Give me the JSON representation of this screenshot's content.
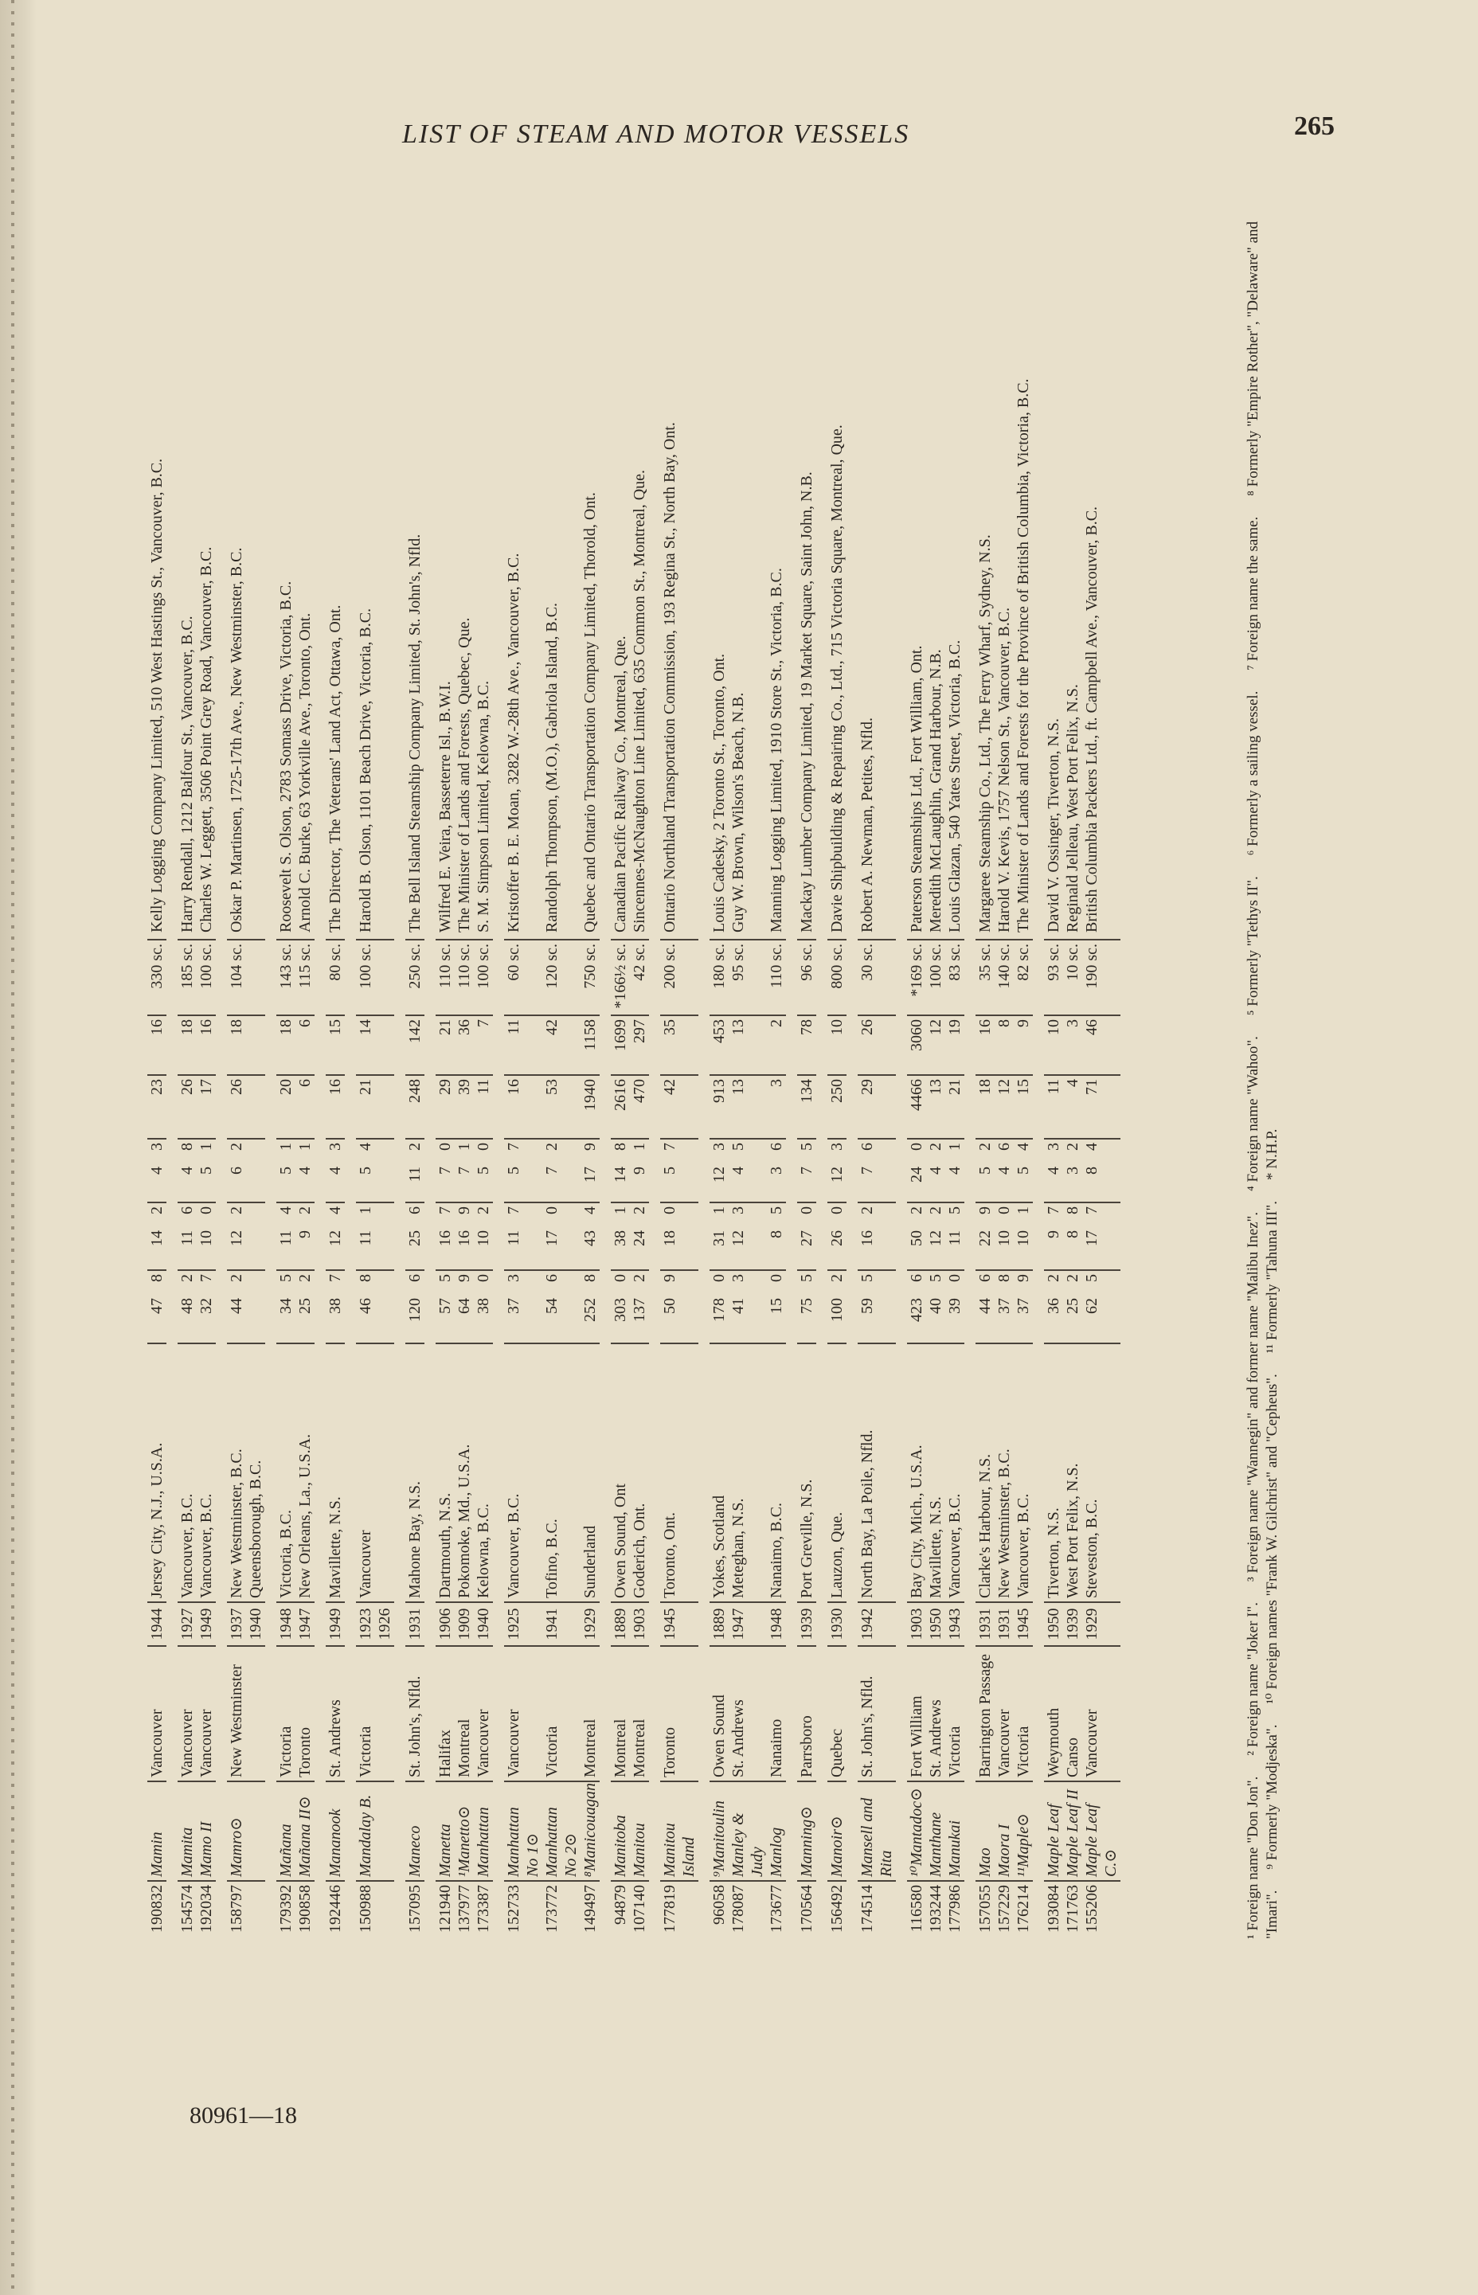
{
  "header": {
    "title": "LIST OF STEAM AND MOTOR VESSELS",
    "page_number": "265"
  },
  "footer": {
    "code": "80961—18"
  },
  "groups": [
    [
      0
    ],
    [
      1,
      2
    ],
    [
      3
    ],
    [
      4,
      5
    ],
    [
      6
    ],
    [
      7
    ],
    [
      8
    ],
    [
      9,
      10,
      11
    ],
    [
      12,
      13,
      14
    ],
    [
      15,
      16
    ],
    [
      17
    ],
    [
      18,
      19,
      20
    ],
    [
      21
    ],
    [
      22
    ],
    [
      23
    ],
    [
      24,
      25,
      26
    ],
    [
      27,
      28,
      29
    ],
    [
      30,
      31,
      32
    ]
  ],
  "rows": [
    {
      "off": "190832",
      "name": "Mamin",
      "port": "Vancouver",
      "year": "1944",
      "where": "Jersey City, N.J., U.S.A.",
      "l": "47",
      "li": "8",
      "b": "14",
      "bi": "2",
      "d": "4",
      "di": "3",
      "gross": "23",
      "reg": "16",
      "hp": "330 sc.",
      "owner": "Kelly Logging Company Limited, 510 West Hastings St., Vancouver, B.C."
    },
    {
      "off": "154574",
      "name": "Mamita",
      "port": "Vancouver",
      "year": "1927",
      "where": "Vancouver, B.C.",
      "l": "48",
      "li": "2",
      "b": "11",
      "bi": "6",
      "d": "4",
      "di": "8",
      "gross": "26",
      "reg": "18",
      "hp": "185 sc.",
      "owner": "Harry Rendall, 1212 Balfour St., Vancouver, B.C."
    },
    {
      "off": "192034",
      "name": "Mamo II",
      "port": "Vancouver",
      "year": "1949",
      "where": "Vancouver, B.C.",
      "l": "32",
      "li": "7",
      "b": "10",
      "bi": "0",
      "d": "5",
      "di": "1",
      "gross": "17",
      "reg": "16",
      "hp": "100 sc.",
      "owner": "Charles W. Leggett, 3506 Point Grey Road, Vancouver, B.C."
    },
    {
      "off": "158797",
      "name": "Mamro⊙",
      "port": "New Westminster",
      "year": "1937\n1940",
      "where": "New Westminster, B.C.\nQueensborough, B.C.",
      "l": "44",
      "li": "2",
      "b": "12",
      "bi": "2",
      "d": "6",
      "di": "2",
      "gross": "26",
      "reg": "18",
      "hp": "104 sc.",
      "owner": "Oskar P. Martinsen, 1725-17th Ave., New Westminster, B.C."
    },
    {
      "off": "179392",
      "name": "Mañana",
      "port": "Victoria",
      "year": "1948",
      "where": "Victoria, B.C.",
      "l": "34",
      "li": "5",
      "b": "11",
      "bi": "4",
      "d": "5",
      "di": "1",
      "gross": "20",
      "reg": "18",
      "hp": "143 sc.",
      "owner": "Roosevelt S. Olson, 2783 Somass Drive, Victoria, B.C."
    },
    {
      "off": "190858",
      "name": "Mañana II⊙",
      "port": "Toronto",
      "year": "1947",
      "where": "New Orleans, La., U.S.A.",
      "l": "25",
      "li": "2",
      "b": "9",
      "bi": "2",
      "d": "4",
      "di": "1",
      "gross": "6",
      "reg": "6",
      "hp": "115 sc.",
      "owner": "Arnold C. Burke, 63 Yorkville Ave., Toronto, Ont."
    },
    {
      "off": "192446",
      "name": "Mananook",
      "port": "St. Andrews",
      "year": "1949",
      "where": "Mavillette, N.S.",
      "l": "38",
      "li": "7",
      "b": "12",
      "bi": "4",
      "d": "4",
      "di": "3",
      "gross": "16",
      "reg": "15",
      "hp": "80 sc.",
      "owner": "The Director, The Veterans' Land Act, Ottawa, Ont."
    },
    {
      "off": "150988",
      "name": "Mandalay B.",
      "port": "Victoria",
      "year": "1923\n1926",
      "where": "Vancouver",
      "l": "46",
      "li": "8",
      "b": "11",
      "bi": "1",
      "d": "5",
      "di": "4",
      "gross": "21",
      "reg": "14",
      "hp": "100 sc.",
      "owner": "Harold B. Olson, 1101 Beach Drive, Victoria, B.C."
    },
    {
      "off": "157095",
      "name": "Maneco",
      "port": "St. John's, Nfld.",
      "year": "1931",
      "where": "Mahone Bay, N.S.",
      "l": "120",
      "li": "6",
      "b": "25",
      "bi": "6",
      "d": "11",
      "di": "2",
      "gross": "248",
      "reg": "142",
      "hp": "250 sc.",
      "owner": "The Bell Island Steamship Company Limited, St. John's, Nfld."
    },
    {
      "off": "121940",
      "name": "Manetta",
      "port": "Halifax",
      "year": "1906",
      "where": "Dartmouth, N.S.",
      "l": "57",
      "li": "5",
      "b": "16",
      "bi": "7",
      "d": "7",
      "di": "0",
      "gross": "29",
      "reg": "21",
      "hp": "110 sc.",
      "owner": "Wilfred E. Veira, Basseterre Isl., B.W.I."
    },
    {
      "off": "137977",
      "name": "¹Manetto⊙",
      "port": "Montreal",
      "year": "1909",
      "where": "Pokomoke, Md., U.S.A.",
      "l": "64",
      "li": "9",
      "b": "16",
      "bi": "9",
      "d": "7",
      "di": "1",
      "gross": "39",
      "reg": "36",
      "hp": "110 sc.",
      "owner": "The Minister of Lands and Forests, Quebec, Que."
    },
    {
      "off": "173387",
      "name": "Manhattan",
      "port": "Vancouver",
      "year": "1940",
      "where": "Kelowna, B.C.",
      "l": "38",
      "li": "0",
      "b": "10",
      "bi": "2",
      "d": "5",
      "di": "0",
      "gross": "11",
      "reg": "7",
      "hp": "100 sc.",
      "owner": "S. M. Simpson Limited, Kelowna, B.C."
    },
    {
      "off": "152733",
      "name": "Manhattan No 1⊙",
      "port": "Vancouver",
      "year": "1925",
      "where": "Vancouver, B.C.",
      "l": "37",
      "li": "3",
      "b": "11",
      "bi": "7",
      "d": "5",
      "di": "7",
      "gross": "16",
      "reg": "11",
      "hp": "60 sc.",
      "owner": "Kristoffer B. E. Moan, 3282 W.-28th Ave., Vancouver, B.C."
    },
    {
      "off": "173772",
      "name": "Manhattan No 2⊙",
      "port": "Victoria",
      "year": "1941",
      "where": "Tofino, B.C.",
      "l": "54",
      "li": "6",
      "b": "17",
      "bi": "0",
      "d": "7",
      "di": "2",
      "gross": "53",
      "reg": "42",
      "hp": "120 sc.",
      "owner": "Randolph Thompson, (M.O.), Gabriola Island, B.C."
    },
    {
      "off": "149497",
      "name": "⁸Manicouagan⊙",
      "port": "Montreal",
      "year": "1929",
      "where": "Sunderland",
      "l": "252",
      "li": "8",
      "b": "43",
      "bi": "4",
      "d": "17",
      "di": "9",
      "gross": "1940",
      "reg": "1158",
      "hp": "750 sc.",
      "owner": "Quebec and Ontario Transportation Company Limited, Thorold, Ont."
    },
    {
      "off": "94879",
      "name": "Manitoba",
      "port": "Montreal",
      "year": "1889",
      "where": "Owen Sound, Ont",
      "l": "303",
      "li": "0",
      "b": "38",
      "bi": "1",
      "d": "14",
      "di": "8",
      "gross": "2616",
      "reg": "1699",
      "hp": "*166½ sc.",
      "owner": "Canadian Pacific Railway Co., Montreal, Que."
    },
    {
      "off": "107140",
      "name": "Manitou",
      "port": "Montreal",
      "year": "1903",
      "where": "Goderich, Ont.",
      "l": "137",
      "li": "2",
      "b": "24",
      "bi": "2",
      "d": "9",
      "di": "1",
      "gross": "470",
      "reg": "297",
      "hp": "42 sc.",
      "owner": "Sincennes-McNaughton Line Limited, 635 Common St., Montreal, Que."
    },
    {
      "off": "177819",
      "name": "Manitou Island",
      "port": "Toronto",
      "year": "1945",
      "where": "Toronto, Ont.",
      "l": "50",
      "li": "9",
      "b": "18",
      "bi": "0",
      "d": "5",
      "di": "7",
      "gross": "42",
      "reg": "35",
      "hp": "200 sc.",
      "owner": "Ontario Northland Transportation Commission, 193 Regina St., North Bay, Ont."
    },
    {
      "off": "96058",
      "name": "⁹Manitoulin",
      "port": "Owen Sound",
      "year": "1889",
      "where": "Yokes, Scotland",
      "l": "178",
      "li": "0",
      "b": "31",
      "bi": "1",
      "d": "12",
      "di": "3",
      "gross": "913",
      "reg": "453",
      "hp": "180 sc.",
      "owner": "Louis Cadesky, 2 Toronto St., Toronto, Ont."
    },
    {
      "off": "178087",
      "name": "Manley & Judy",
      "port": "St. Andrews",
      "year": "1947",
      "where": "Meteghan, N.S.",
      "l": "41",
      "li": "3",
      "b": "12",
      "bi": "3",
      "d": "4",
      "di": "5",
      "gross": "13",
      "reg": "13",
      "hp": "95 sc.",
      "owner": "Guy W. Brown, Wilson's Beach, N.B."
    },
    {
      "off": "173677",
      "name": "Manlog",
      "port": "Nanaimo",
      "year": "1948",
      "where": "Nanaimo, B.C.",
      "l": "15",
      "li": "0",
      "b": "8",
      "bi": "5",
      "d": "3",
      "di": "6",
      "gross": "3",
      "reg": "2",
      "hp": "110 sc.",
      "owner": "Manning Logging Limited, 1910 Store St., Victoria, B.C."
    },
    {
      "off": "170564",
      "name": "Manning⊙",
      "port": "Parrsboro",
      "year": "1939",
      "where": "Port Greville, N.S.",
      "l": "75",
      "li": "5",
      "b": "27",
      "bi": "0",
      "d": "7",
      "di": "5",
      "gross": "134",
      "reg": "78",
      "hp": "96 sc.",
      "owner": "Mackay Lumber Company Limited, 19 Market Square, Saint John, N.B."
    },
    {
      "off": "156492",
      "name": "Manoir⊙",
      "port": "Quebec",
      "year": "1930",
      "where": "Lauzon, Que.",
      "l": "100",
      "li": "2",
      "b": "26",
      "bi": "0",
      "d": "12",
      "di": "3",
      "gross": "250",
      "reg": "10",
      "hp": "800 sc.",
      "owner": "Davie Shipbuilding & Repairing Co., Ltd., 715 Victoria Square, Montreal, Que."
    },
    {
      "off": "174514",
      "name": "Mansell and Rita",
      "port": "St. John's, Nfld.",
      "year": "1942",
      "where": "North Bay, La Poile, Nfld.",
      "l": "59",
      "li": "5",
      "b": "16",
      "bi": "2",
      "d": "7",
      "di": "6",
      "gross": "29",
      "reg": "26",
      "hp": "30 sc.",
      "owner": "Robert A. Newman, Petites, Nfld."
    },
    {
      "off": "116580",
      "name": "¹⁰Mantadoc⊙",
      "port": "Fort William",
      "year": "1903",
      "where": "Bay City, Mich., U.S.A.",
      "l": "423",
      "li": "6",
      "b": "50",
      "bi": "2",
      "d": "24",
      "di": "0",
      "gross": "4466",
      "reg": "3060",
      "hp": "*169 sc.",
      "owner": "Paterson Steamships Ltd., Fort William, Ont."
    },
    {
      "off": "193244",
      "name": "Manthane",
      "port": "St. Andrews",
      "year": "1950",
      "where": "Mavillette, N.S.",
      "l": "40",
      "li": "5",
      "b": "12",
      "bi": "2",
      "d": "4",
      "di": "2",
      "gross": "13",
      "reg": "12",
      "hp": "100 sc.",
      "owner": "Meredith McLaughlin, Grand Harbour, N.B."
    },
    {
      "off": "177986",
      "name": "Manukai",
      "port": "Victoria",
      "year": "1943",
      "where": "Vancouver, B.C.",
      "l": "39",
      "li": "0",
      "b": "11",
      "bi": "5",
      "d": "4",
      "di": "1",
      "gross": "21",
      "reg": "19",
      "hp": "83 sc.",
      "owner": "Louis Glazan, 540 Yates Street, Victoria, B.C."
    },
    {
      "off": "157055",
      "name": "Mao",
      "port": "Barrington Passage",
      "year": "1931",
      "where": "Clarke's Harbour, N.S.",
      "l": "44",
      "li": "6",
      "b": "22",
      "bi": "9",
      "d": "5",
      "di": "2",
      "gross": "18",
      "reg": "16",
      "hp": "35 sc.",
      "owner": "Margaree Steamship Co., Ltd., The Ferry Wharf, Sydney, N.S."
    },
    {
      "off": "157229",
      "name": "Maora I",
      "port": "Vancouver",
      "year": "1931",
      "where": "New Westminster, B.C.",
      "l": "37",
      "li": "8",
      "b": "10",
      "bi": "0",
      "d": "4",
      "di": "6",
      "gross": "12",
      "reg": "8",
      "hp": "140 sc.",
      "owner": "Harold V. Kevis, 1757 Nelson St., Vancouver, B.C."
    },
    {
      "off": "176214",
      "name": "¹¹Maple⊙",
      "port": "Victoria",
      "year": "1945",
      "where": "Vancouver, B.C.",
      "l": "37",
      "li": "9",
      "b": "10",
      "bi": "1",
      "d": "5",
      "di": "4",
      "gross": "15",
      "reg": "9",
      "hp": "82 sc.",
      "owner": "The Minister of Lands and Forests for the Province of British Columbia, Victoria, B.C."
    },
    {
      "off": "193084",
      "name": "Maple Leaf",
      "port": "Weymouth",
      "year": "1950",
      "where": "Tiverton, N.S.",
      "l": "36",
      "li": "2",
      "b": "9",
      "bi": "7",
      "d": "4",
      "di": "3",
      "gross": "11",
      "reg": "10",
      "hp": "93 sc.",
      "owner": "David V. Ossinger, Tiverton, N.S."
    },
    {
      "off": "171763",
      "name": "Maple Leaf II",
      "port": "Canso",
      "year": "1939",
      "where": "West Port Felix, N.S.",
      "l": "25",
      "li": "2",
      "b": "8",
      "bi": "8",
      "d": "3",
      "di": "2",
      "gross": "4",
      "reg": "3",
      "hp": "10 sc.",
      "owner": "Reginald Jelleau, West Port Felix, N.S."
    },
    {
      "off": "155206",
      "name": "Maple Leaf C.⊙",
      "port": "Vancouver",
      "year": "1929",
      "where": "Steveston, B.C.",
      "l": "62",
      "li": "5",
      "b": "17",
      "bi": "7",
      "d": "8",
      "di": "4",
      "gross": "71",
      "reg": "46",
      "hp": "190 sc.",
      "owner": "British Columbia Packers Ltd., ft. Campbell Ave., Vancouver, B.C."
    }
  ],
  "footnotes": [
    "¹ Foreign name \"Don Jon\".",
    "² Foreign name \"Joker I\".",
    "³ Foreign name \"Wannegin\" and former name \"Malibu Inez\".",
    "⁴ Foreign name \"Wahoo\".",
    "⁵ Formerly \"Tethys II\".",
    "⁶ Formerly a sailing vessel.",
    "⁷ Foreign name the same.",
    "⁸ Formerly \"Empire Rother\", \"Delaware\" and \"Imari\".",
    "⁹ Formerly \"Modjeska\".",
    "¹⁰ Foreign names \"Frank W. Gilchrist\" and \"Cepheus\".",
    "¹¹ Formerly \"Tahuna III\".",
    "* N.H.P."
  ]
}
